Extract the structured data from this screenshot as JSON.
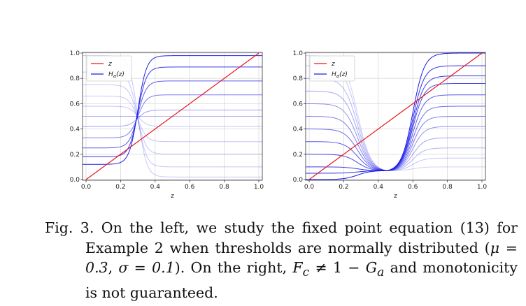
{
  "chart_data": [
    {
      "type": "line",
      "xlabel": "z",
      "xlim": [
        0,
        1
      ],
      "ylim": [
        0,
        1
      ],
      "x_ticks": [
        "0.0",
        "0.2",
        "0.4",
        "0.6",
        "0.8",
        "1.0"
      ],
      "y_ticks": [
        "0.0",
        "0.2",
        "0.4",
        "0.6",
        "0.8",
        "1.0"
      ],
      "grid": true,
      "legend": {
        "placement": "top-left",
        "entries": [
          "z",
          "H_a(z)"
        ]
      },
      "series": [
        {
          "name": "z",
          "color": "#e8161a",
          "x": [
            0,
            1
          ],
          "y": [
            0,
            1
          ]
        },
        {
          "name": "H_a(z)",
          "color": "#1a1ae6",
          "description": "family of sigmoid curves through (0.3, 0.5); plateau levels",
          "left_levels": [
            0.12,
            0.18,
            0.25,
            0.33,
            0.42,
            0.5,
            0.58,
            0.66,
            0.75,
            0.85,
            0.98
          ],
          "right_levels": [
            0.98,
            0.89,
            0.78,
            0.67,
            0.55,
            0.5,
            0.42,
            0.3,
            0.2,
            0.1,
            0.02
          ],
          "crossing": [
            0.3,
            0.5
          ]
        }
      ]
    },
    {
      "type": "line",
      "xlabel": "z",
      "xlim": [
        0,
        1
      ],
      "ylim": [
        0,
        1
      ],
      "x_ticks": [
        "0.0",
        "0.2",
        "0.4",
        "0.6",
        "0.8",
        "1.0"
      ],
      "y_ticks": [
        "0.0",
        "0.2",
        "0.4",
        "0.6",
        "0.8",
        "1.0"
      ],
      "grid": true,
      "legend": {
        "placement": "top-left",
        "entries": [
          "z",
          "H_a(z)"
        ]
      },
      "series": [
        {
          "name": "z",
          "color": "#e8161a",
          "x": [
            0,
            1
          ],
          "y": [
            0,
            1
          ]
        },
        {
          "name": "H_a(z)",
          "color": "#1a1ae6",
          "description": "family of curves dipping to a common point near (0.45, 0.07)",
          "left_levels": [
            0.0,
            0.05,
            0.1,
            0.2,
            0.3,
            0.4,
            0.5,
            0.6,
            0.7,
            0.8,
            0.9,
            0.98
          ],
          "right_levels": [
            1.0,
            0.9,
            0.82,
            0.76,
            0.67,
            0.58,
            0.5,
            0.42,
            0.33,
            0.25,
            0.17,
            0.1
          ],
          "pivot": [
            0.45,
            0.07
          ]
        }
      ]
    }
  ],
  "legend_labels": {
    "z": "z",
    "ha_base": "H",
    "ha_sub": "a",
    "ha_arg": "(z)"
  },
  "caption": {
    "line1": "Fig. 3. On the left, we study the fixed point equation",
    "line2": "(13) for Example 2 when thresholds are normally",
    "line3_text": "distributed (",
    "mu_eq": "μ = 0.3",
    "sigma_eq": "σ = 0.1",
    "line3_end": "). On the right,",
    "fc": "F",
    "fc_sub": "c",
    "neq_tail": "≠ 1 −",
    "ga": "G",
    "ga_sub": "a",
    "line4_end": "and monotonicity is not guaranteed."
  }
}
